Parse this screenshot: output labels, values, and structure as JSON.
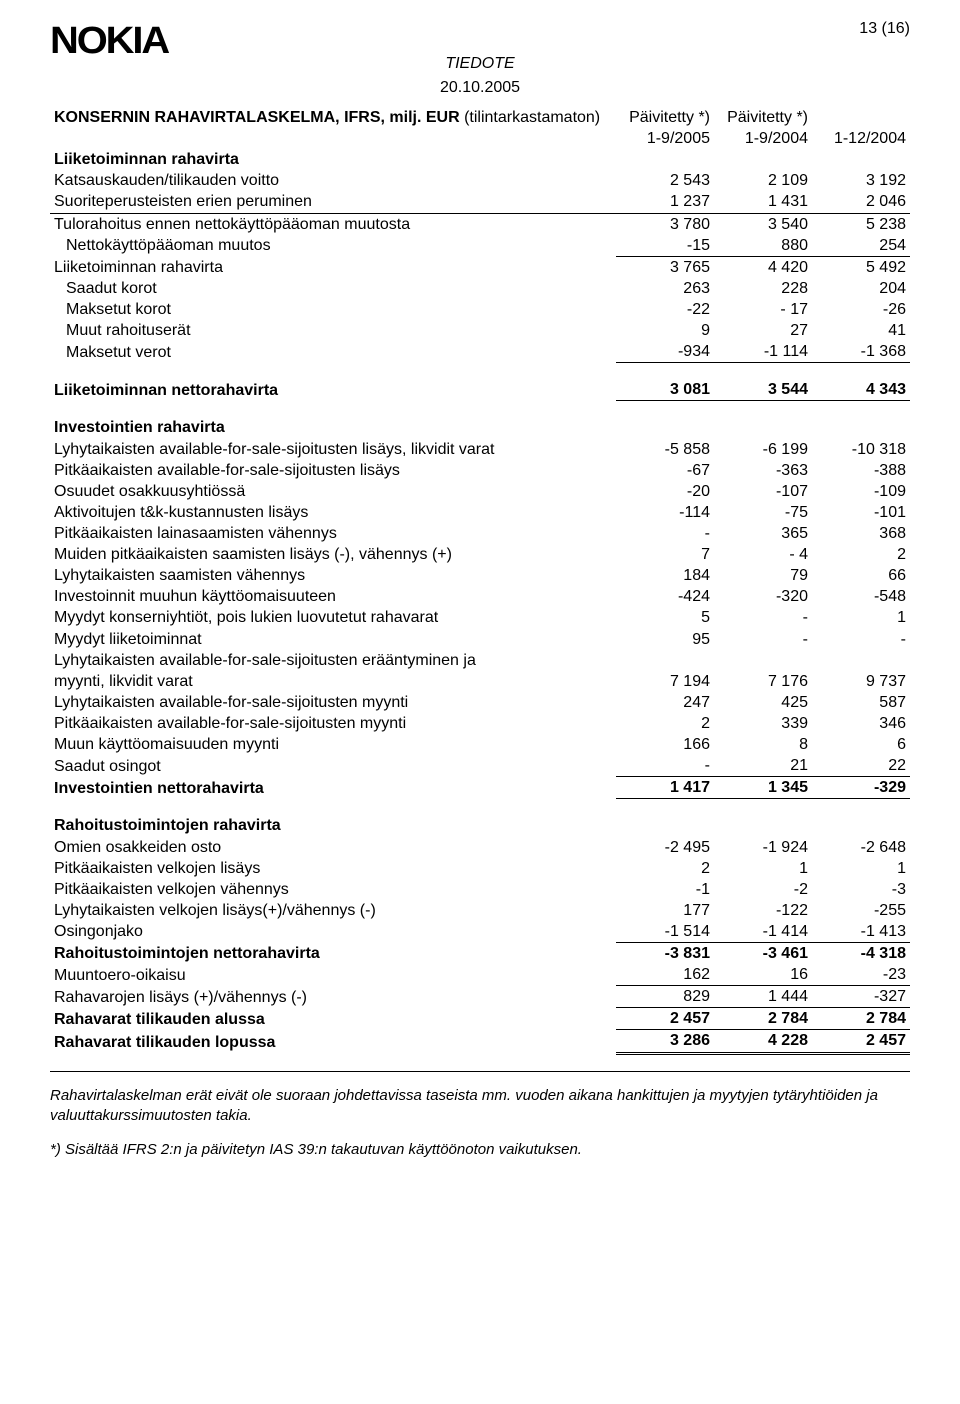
{
  "meta": {
    "page_indicator": "13 (16)",
    "tiedote": "TIEDOTE",
    "date": "20.10.2005"
  },
  "title_row": {
    "label": "KONSERNIN RAHAVIRTALASKELMA, IFRS, milj. EUR (tilintarkastamaton)",
    "c1": "Päivitetty *)",
    "c2": "Päivitetty *)",
    "c3": ""
  },
  "periods": {
    "c1": "1-9/2005",
    "c2": "1-9/2004",
    "c3": "1-12/2004"
  },
  "rows": [
    {
      "label": "Liiketoiminnan rahavirta",
      "bold": true
    },
    {
      "label": "Katsauskauden/tilikauden voitto",
      "c1": "2 543",
      "c2": "2 109",
      "c3": "3 192"
    },
    {
      "label": "Suoriteperusteisten erien peruminen",
      "c1": "1 237",
      "c2": "1 431",
      "c3": "2 046"
    },
    {
      "label": "Tulorahoitus ennen nettokäyttöpääoman muutosta",
      "c1": "3 780",
      "c2": "3 540",
      "c3": "5 238",
      "topline": true
    },
    {
      "label": "Nettokäyttöpääoman muutos",
      "c1": "-15",
      "c2": "880",
      "c3": "254",
      "indent": true,
      "under": true
    },
    {
      "label": "Liiketoiminnan rahavirta",
      "c1": "3 765",
      "c2": "4 420",
      "c3": "5 492"
    },
    {
      "label": "Saadut korot",
      "c1": "263",
      "c2": "228",
      "c3": "204",
      "indent": true
    },
    {
      "label": "Maksetut korot",
      "c1": "-22",
      "c2": "- 17",
      "c3": "-26",
      "indent": true
    },
    {
      "label": "Muut rahoituserät",
      "c1": "9",
      "c2": "27",
      "c3": "41",
      "indent": true
    },
    {
      "label": "Maksetut verot",
      "c1": "-934",
      "c2": "-1 114",
      "c3": "-1 368",
      "indent": true,
      "under": true
    },
    {
      "spacer": true
    },
    {
      "label": "Liiketoiminnan nettorahavirta",
      "c1": "3 081",
      "c2": "3 544",
      "c3": "4 343",
      "bold": true,
      "under": true
    },
    {
      "spacer": true
    },
    {
      "label": "Investointien rahavirta",
      "bold": true
    },
    {
      "label": "Lyhytaikaisten available-for-sale-sijoitusten lisäys, likvidit varat",
      "c1": "-5 858",
      "c2": "-6 199",
      "c3": "-10 318"
    },
    {
      "label": "Pitkäaikaisten available-for-sale-sijoitusten lisäys",
      "c1": "-67",
      "c2": "-363",
      "c3": "-388"
    },
    {
      "label": "Osuudet osakkuusyhtiössä",
      "c1": "-20",
      "c2": "-107",
      "c3": "-109"
    },
    {
      "label": "Aktivoitujen t&k-kustannusten lisäys",
      "c1": "-114",
      "c2": "-75",
      "c3": "-101"
    },
    {
      "label": "Pitkäaikaisten lainasaamisten vähennys",
      "c1": "-",
      "c2": "365",
      "c3": "368"
    },
    {
      "label": "Muiden pitkäaikaisten saamisten lisäys (-), vähennys (+)",
      "c1": "7",
      "c2": "- 4",
      "c3": "2"
    },
    {
      "label": "Lyhytaikaisten saamisten vähennys",
      "c1": "184",
      "c2": "79",
      "c3": "66"
    },
    {
      "label": "Investoinnit muuhun käyttöomaisuuteen",
      "c1": "-424",
      "c2": "-320",
      "c3": "-548"
    },
    {
      "label": "Myydyt konserniyhtiöt, pois lukien luovutetut rahavarat",
      "c1": "5",
      "c2": "-",
      "c3": "1"
    },
    {
      "label": "Myydyt liiketoiminnat",
      "c1": "95",
      "c2": "-",
      "c3": "-"
    },
    {
      "label": "Lyhytaikaisten available-for-sale-sijoitusten erääntyminen ja"
    },
    {
      "label": "myynti, likvidit varat",
      "c1": "7 194",
      "c2": "7 176",
      "c3": "9 737"
    },
    {
      "label": "Lyhytaikaisten available-for-sale-sijoitusten myynti",
      "c1": "247",
      "c2": "425",
      "c3": "587"
    },
    {
      "label": "Pitkäaikaisten available-for-sale-sijoitusten myynti",
      "c1": "2",
      "c2": "339",
      "c3": "346"
    },
    {
      "label": "Muun käyttöomaisuuden myynti",
      "c1": "166",
      "c2": "8",
      "c3": "6"
    },
    {
      "label": "Saadut osingot",
      "c1": "-",
      "c2": "21",
      "c3": "22",
      "under": true
    },
    {
      "label": "Investointien nettorahavirta",
      "c1": "1 417",
      "c2": "1 345",
      "c3": "-329",
      "bold": true,
      "under": true
    },
    {
      "spacer": true
    },
    {
      "label": "Rahoitustoimintojen rahavirta",
      "bold": true
    },
    {
      "label": "Omien osakkeiden osto",
      "c1": "-2 495",
      "c2": "-1 924",
      "c3": "-2 648"
    },
    {
      "label": "Pitkäaikaisten velkojen lisäys",
      "c1": "2",
      "c2": "1",
      "c3": "1"
    },
    {
      "label": "Pitkäaikaisten velkojen vähennys",
      "c1": "-1",
      "c2": "-2",
      "c3": "-3"
    },
    {
      "label": "Lyhytaikaisten velkojen lisäys(+)/vähennys (-)",
      "c1": "177",
      "c2": "-122",
      "c3": "-255"
    },
    {
      "label": "Osingonjako",
      "c1": "-1 514",
      "c2": "-1 414",
      "c3": "-1 413",
      "under": true
    },
    {
      "label": "Rahoitustoimintojen nettorahavirta",
      "c1": "-3 831",
      "c2": "-3 461",
      "c3": "-4 318",
      "bold": true
    },
    {
      "label": "Muuntoero-oikaisu",
      "c1": "162",
      "c2": "16",
      "c3": "-23",
      "under": true
    },
    {
      "label": "Rahavarojen lisäys (+)/vähennys (-)",
      "c1": "829",
      "c2": "1 444",
      "c3": "-327",
      "under": true
    },
    {
      "label": "Rahavarat tilikauden alussa",
      "c1": "2 457",
      "c2": "2 784",
      "c3": "2 784",
      "bold": true,
      "under": true
    },
    {
      "label": "Rahavarat tilikauden lopussa",
      "c1": "3 286",
      "c2": "4 228",
      "c3": "2 457",
      "bold": true,
      "dbl": true
    }
  ],
  "footnotes": {
    "f1": "Rahavirtalaskelman erät eivät ole suoraan johdettavissa taseista mm. vuoden aikana hankittujen ja myytyjen tytäryhtiöiden ja valuuttakurssimuutosten takia.",
    "f2": "*) Sisältää IFRS 2:n ja päivitetyn IAS 39:n takautuvan käyttöönoton vaikutuksen."
  }
}
